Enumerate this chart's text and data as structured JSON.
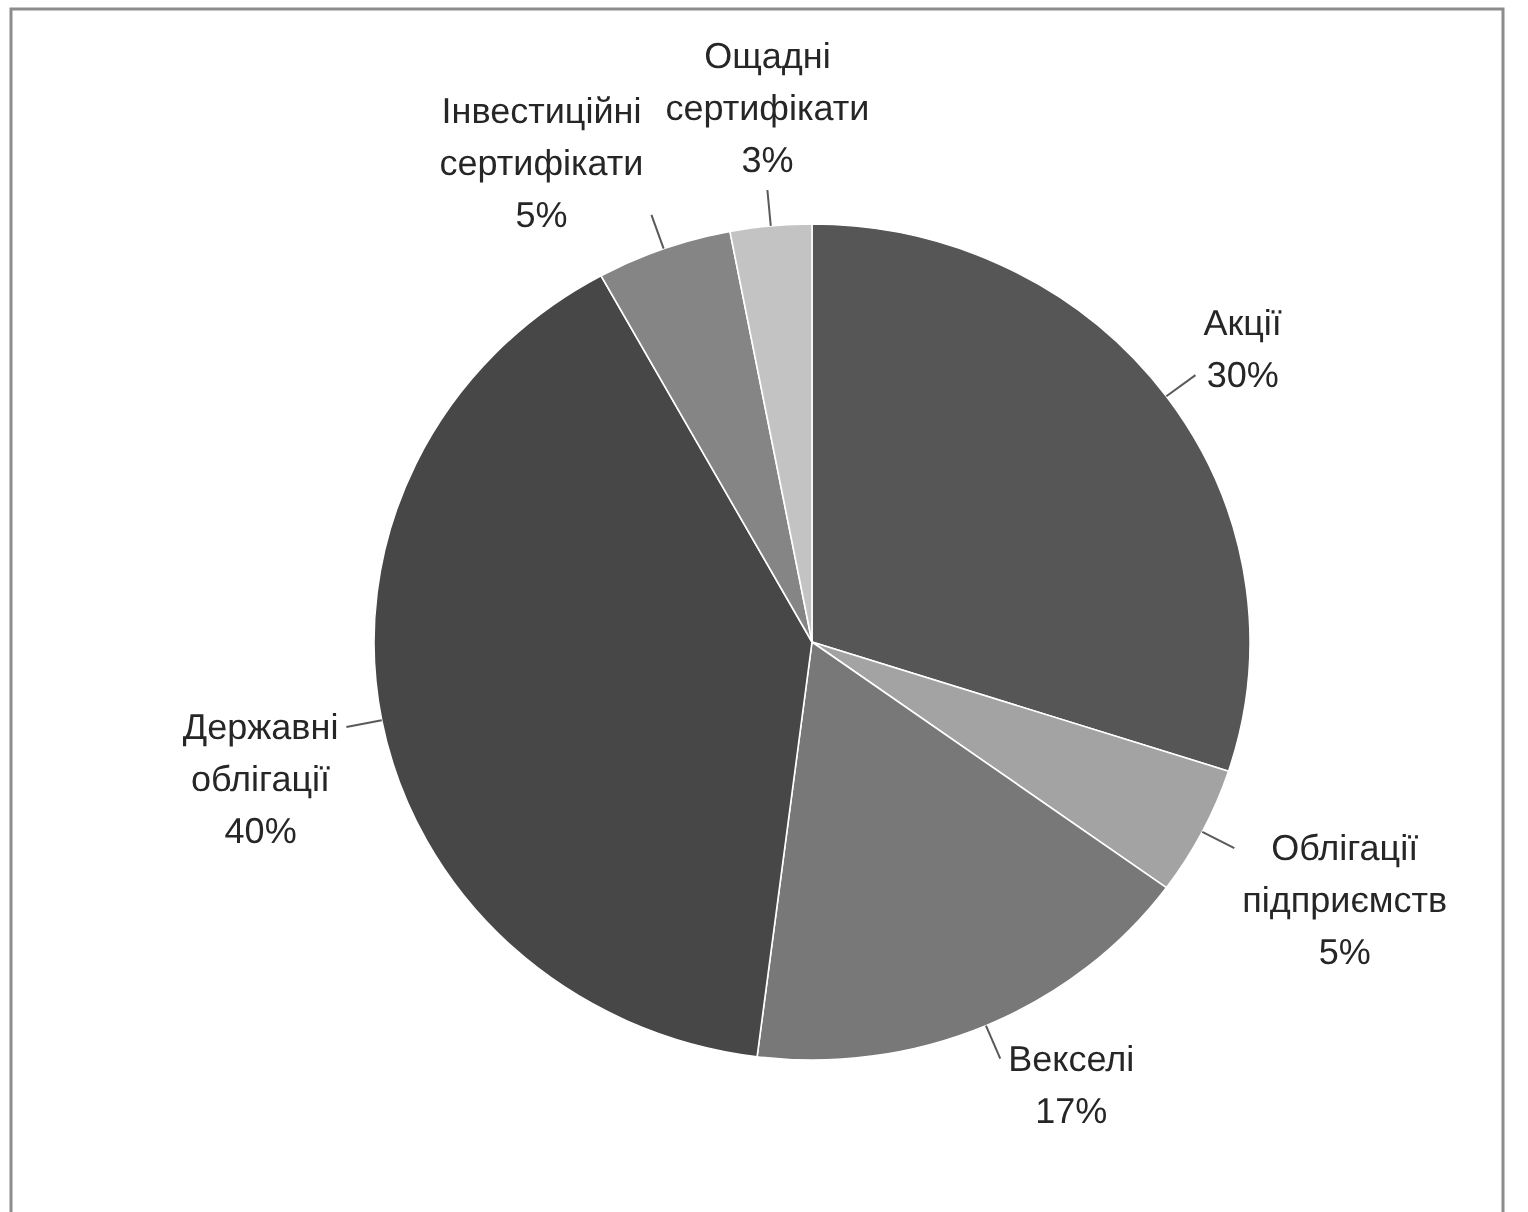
{
  "chart_data": {
    "type": "pie",
    "categories": [
      "Акції",
      "Облігації підприємств",
      "Векселі",
      "Державні облігації",
      "Інвестиційні сертифікати",
      "Ощадні сертифікати"
    ],
    "values": [
      30,
      5,
      17,
      40,
      5,
      3
    ],
    "value_labels": [
      "30%",
      "5%",
      "17%",
      "40%",
      "5%",
      "3%"
    ],
    "colors": [
      "#565656",
      "#a3a3a3",
      "#787878",
      "#474747",
      "#858585",
      "#c3c3c3"
    ]
  }
}
